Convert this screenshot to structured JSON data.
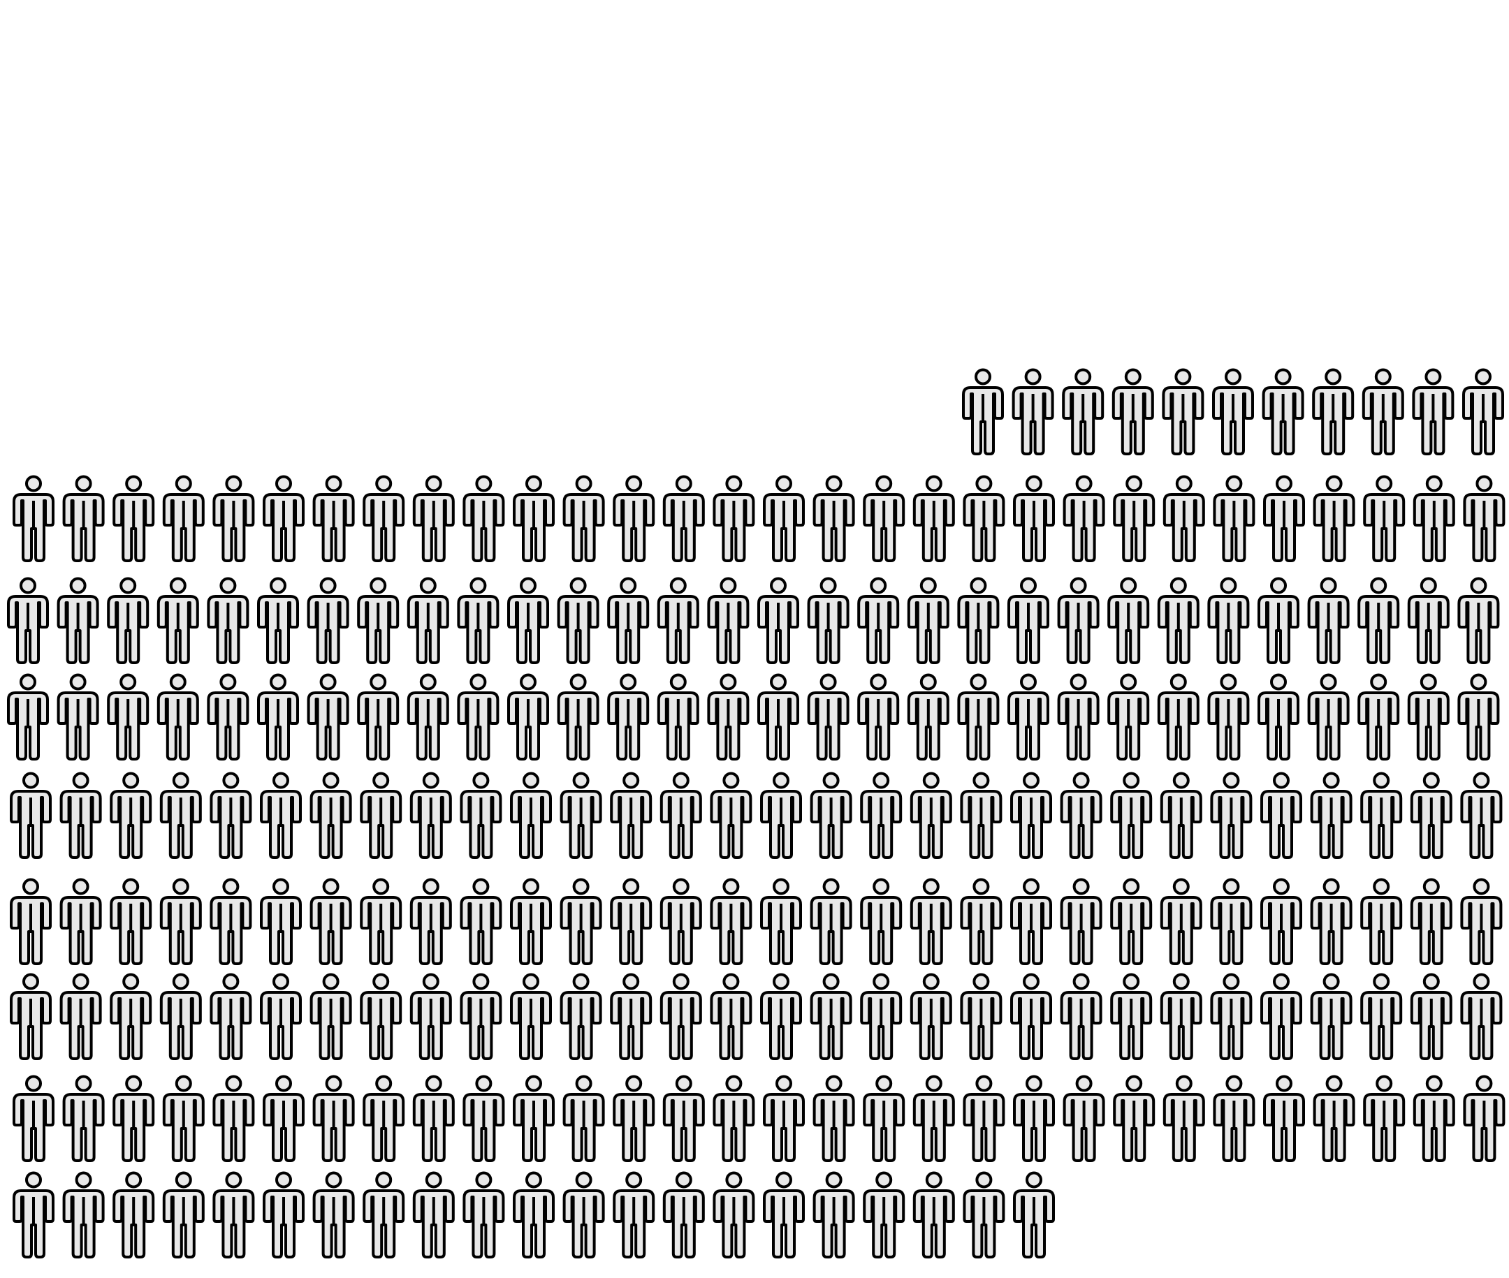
{
  "figure": {
    "icon": "person-icon",
    "icon_fill": "#e8e8e8",
    "icon_stroke": "#000000",
    "background": "#ffffff",
    "row_counts": [
      11,
      30,
      30,
      30,
      30,
      30,
      30,
      30,
      21
    ],
    "total_icons": 242
  }
}
